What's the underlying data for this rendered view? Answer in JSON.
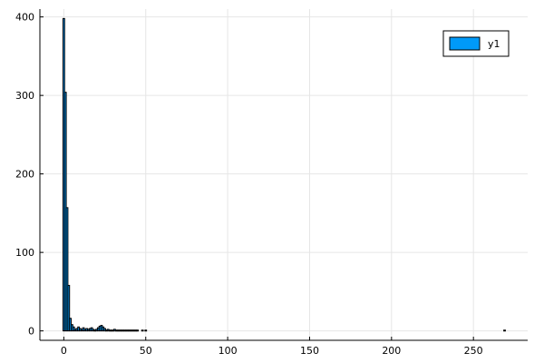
{
  "chart_data": {
    "type": "bar",
    "title": "",
    "xlabel": "",
    "ylabel": "",
    "xlim": [
      -14.6,
      283.1
    ],
    "ylim": [
      -12,
      410
    ],
    "x_ticks": [
      0,
      50,
      100,
      150,
      200,
      250
    ],
    "y_ticks": [
      0,
      100,
      200,
      300,
      400
    ],
    "grid": true,
    "legend_position": "top-right",
    "bar_width": 1,
    "bar_fill": "#009af9",
    "bar_stroke": "#000000",
    "series": [
      {
        "name": "y1",
        "x": [
          0,
          1,
          2,
          3,
          4,
          5,
          6,
          7,
          8,
          9,
          10,
          11,
          12,
          13,
          14,
          15,
          16,
          17,
          18,
          19,
          20,
          21,
          22,
          23,
          24,
          25,
          26,
          27,
          28,
          29,
          30,
          31,
          32,
          33,
          34,
          35,
          36,
          37,
          38,
          39,
          40,
          41,
          42,
          43,
          44,
          45,
          46,
          47,
          48,
          49,
          50,
          51,
          52,
          53,
          54,
          55,
          56,
          57,
          58,
          59,
          60,
          80,
          100,
          120,
          140,
          160,
          180,
          200,
          220,
          240,
          260,
          269
        ],
        "values": [
          398,
          304,
          157,
          58,
          16,
          8,
          5,
          2,
          3,
          5,
          3,
          2,
          4,
          2,
          3,
          2,
          3,
          4,
          2,
          1,
          2,
          4,
          6,
          7,
          5,
          3,
          1,
          2,
          1,
          1,
          1,
          2,
          1,
          1,
          1,
          1,
          1,
          1,
          1,
          1,
          1,
          1,
          1,
          1,
          1,
          1,
          0,
          0,
          1,
          0,
          1,
          0,
          0,
          0,
          0,
          0,
          0,
          0,
          0,
          0,
          0,
          0,
          0,
          0,
          0,
          0,
          0,
          0,
          0,
          0,
          0,
          1
        ]
      }
    ]
  }
}
